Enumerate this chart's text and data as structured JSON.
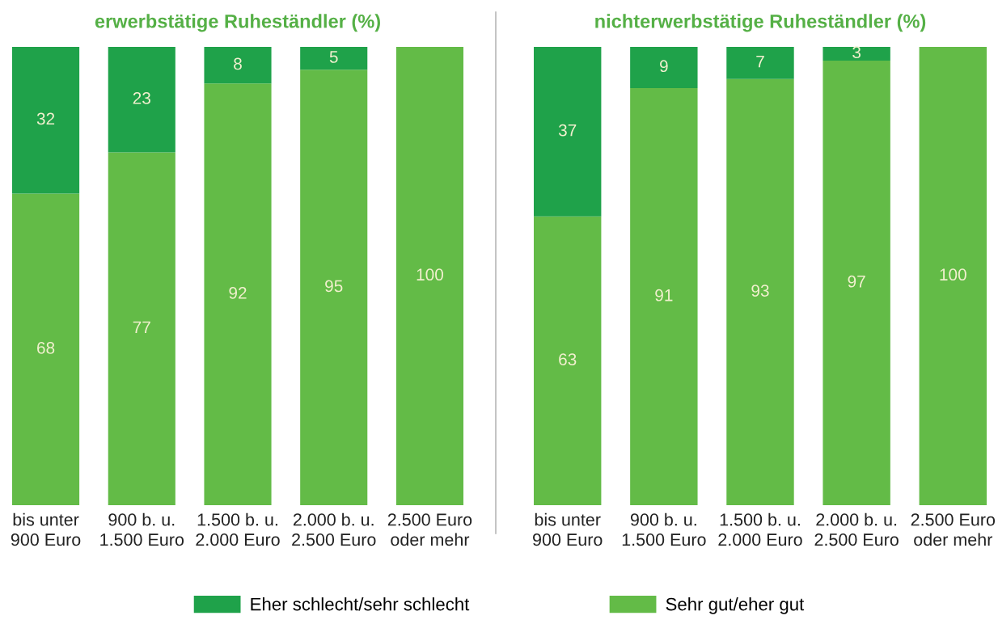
{
  "chart_data": [
    {
      "type": "bar",
      "title": "erwerbstätige Ruheständler (%)",
      "categories": [
        "bis unter\n900 Euro",
        "900 b. u.\n1.500 Euro",
        "1.500 b. u.\n2.000 Euro",
        "2.000 b. u.\n2.500 Euro",
        "2.500 Euro\noder mehr"
      ],
      "stacked": true,
      "ylim": [
        0,
        100
      ],
      "tick_labels": "x",
      "legend": "bottom",
      "series": [
        {
          "name": "Sehr gut/eher gut",
          "color": "#63bb47",
          "values": [
            68,
            77,
            92,
            95,
            100
          ],
          "value_labels": [
            "68",
            "77",
            "92",
            "95",
            "100"
          ]
        },
        {
          "name": "Eher schlecht/sehr schlecht",
          "color": "#1fa24a",
          "values": [
            32,
            23,
            8,
            5,
            0
          ],
          "value_labels": [
            "32",
            "23",
            "8",
            "5",
            null
          ]
        }
      ]
    },
    {
      "type": "bar",
      "title": "nichterwerbstätige Ruheständler (%)",
      "categories": [
        "bis unter\n900 Euro",
        "900 b. u.\n1.500 Euro",
        "1.500 b. u.\n2.000 Euro",
        "2.000 b. u.\n2.500 Euro",
        "2.500 Euro\noder mehr"
      ],
      "stacked": true,
      "ylim": [
        0,
        100
      ],
      "tick_labels": "x",
      "series": [
        {
          "color": "#63bb47",
          "values": [
            63,
            91,
            93,
            97,
            100
          ],
          "value_labels": [
            "63",
            "91",
            "93",
            "97",
            "100"
          ]
        },
        {
          "color": "#1fa24a",
          "values": [
            37,
            9,
            7,
            3,
            0
          ],
          "value_labels": [
            "37",
            "9",
            "7",
            "3",
            null
          ]
        }
      ]
    }
  ]
}
